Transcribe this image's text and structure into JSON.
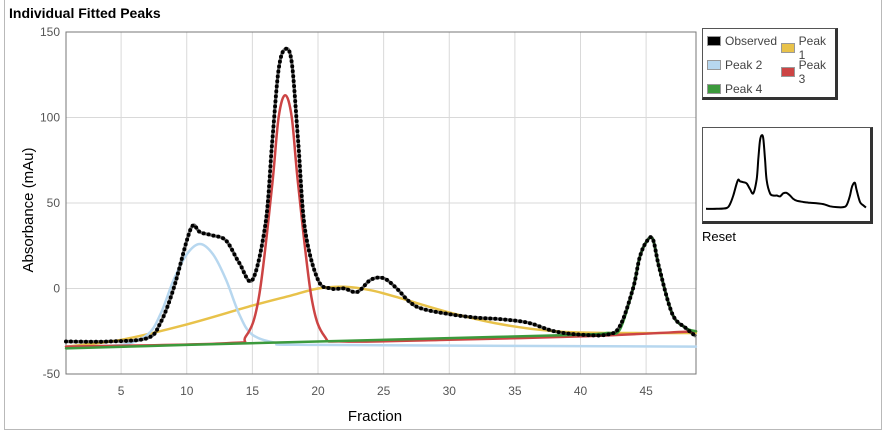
{
  "title": "Individual Fitted Peaks",
  "reset_label": "Reset",
  "legend": [
    {
      "label": "Observed",
      "color": "#000000"
    },
    {
      "label": "Peak 1",
      "color": "#e8c24a"
    },
    {
      "label": "Peak 2",
      "color": "#b7d7ef"
    },
    {
      "label": "Peak 3",
      "color": "#cc4444"
    },
    {
      "label": "Peak 4",
      "color": "#3c9a3c"
    }
  ],
  "chart_data": {
    "type": "line",
    "title": "Individual Fitted Peaks",
    "xlabel": "Fraction",
    "ylabel": "Absorbance (mAu)",
    "xlim": [
      0.8,
      48.8
    ],
    "ylim": [
      -50,
      150
    ],
    "xticks": [
      5,
      10,
      15,
      20,
      25,
      30,
      35,
      40,
      45
    ],
    "yticks": [
      150,
      100,
      50,
      0,
      -50
    ],
    "grid": true,
    "legend_position": "right",
    "series": [
      {
        "name": "Observed",
        "color": "#000000",
        "x": [
          0.8,
          4,
          7,
          8,
          9,
          10,
          10.5,
          11,
          12,
          13,
          14,
          15,
          16,
          16.5,
          17,
          17.5,
          18,
          18.5,
          19,
          20,
          21,
          22,
          23,
          24,
          25,
          26,
          27,
          28,
          30,
          32,
          34,
          36,
          38,
          40,
          42,
          43,
          44,
          44.5,
          45,
          45.5,
          46,
          47,
          48,
          48.8
        ],
        "y": [
          -31,
          -31,
          -29,
          -20,
          0,
          28,
          37,
          33,
          31,
          28,
          15,
          5,
          38,
          85,
          128,
          140,
          132,
          85,
          35,
          5,
          0,
          0,
          -2,
          5,
          6,
          0,
          -8,
          -12,
          -15,
          -17,
          -18,
          -20,
          -25,
          -27,
          -27,
          -22,
          0,
          18,
          27,
          29,
          12,
          -15,
          -23,
          -28
        ]
      },
      {
        "name": "Peak 1",
        "color": "#e8c24a",
        "x": [
          0.8,
          5,
          10,
          15,
          18,
          20,
          22,
          24,
          26,
          30,
          34,
          38,
          42,
          48.8
        ],
        "y": [
          -34,
          -30,
          -21,
          -10,
          -4,
          0,
          1,
          -1,
          -5,
          -14,
          -21,
          -25,
          -26,
          -26
        ]
      },
      {
        "name": "Peak 2",
        "color": "#b7d7ef",
        "x": [
          0.8,
          5,
          7,
          8,
          9,
          10,
          11,
          12,
          13,
          14,
          15,
          17,
          20,
          48.8
        ],
        "y": [
          -34,
          -33,
          -27,
          -15,
          5,
          20,
          26,
          20,
          5,
          -15,
          -27,
          -32,
          -33,
          -34
        ]
      },
      {
        "name": "Peak 3",
        "color": "#cc4444",
        "x": [
          0.8,
          13,
          14.5,
          15.5,
          16.5,
          17,
          17.5,
          18,
          18.5,
          19.5,
          20.5,
          22,
          30,
          40,
          48.8
        ],
        "y": [
          -34,
          -32,
          -28,
          -5,
          60,
          100,
          113,
          100,
          60,
          -5,
          -28,
          -31,
          -30,
          -28,
          -25
        ]
      },
      {
        "name": "Peak 4",
        "color": "#3c9a3c",
        "x": [
          0.8,
          10,
          20,
          30,
          40,
          42,
          43,
          44,
          44.5,
          45,
          45.5,
          46,
          47,
          48,
          48.8
        ],
        "y": [
          -35,
          -33,
          -31,
          -29,
          -27,
          -26,
          -24,
          0,
          18,
          27,
          29,
          12,
          -15,
          -23,
          -25
        ]
      }
    ]
  }
}
